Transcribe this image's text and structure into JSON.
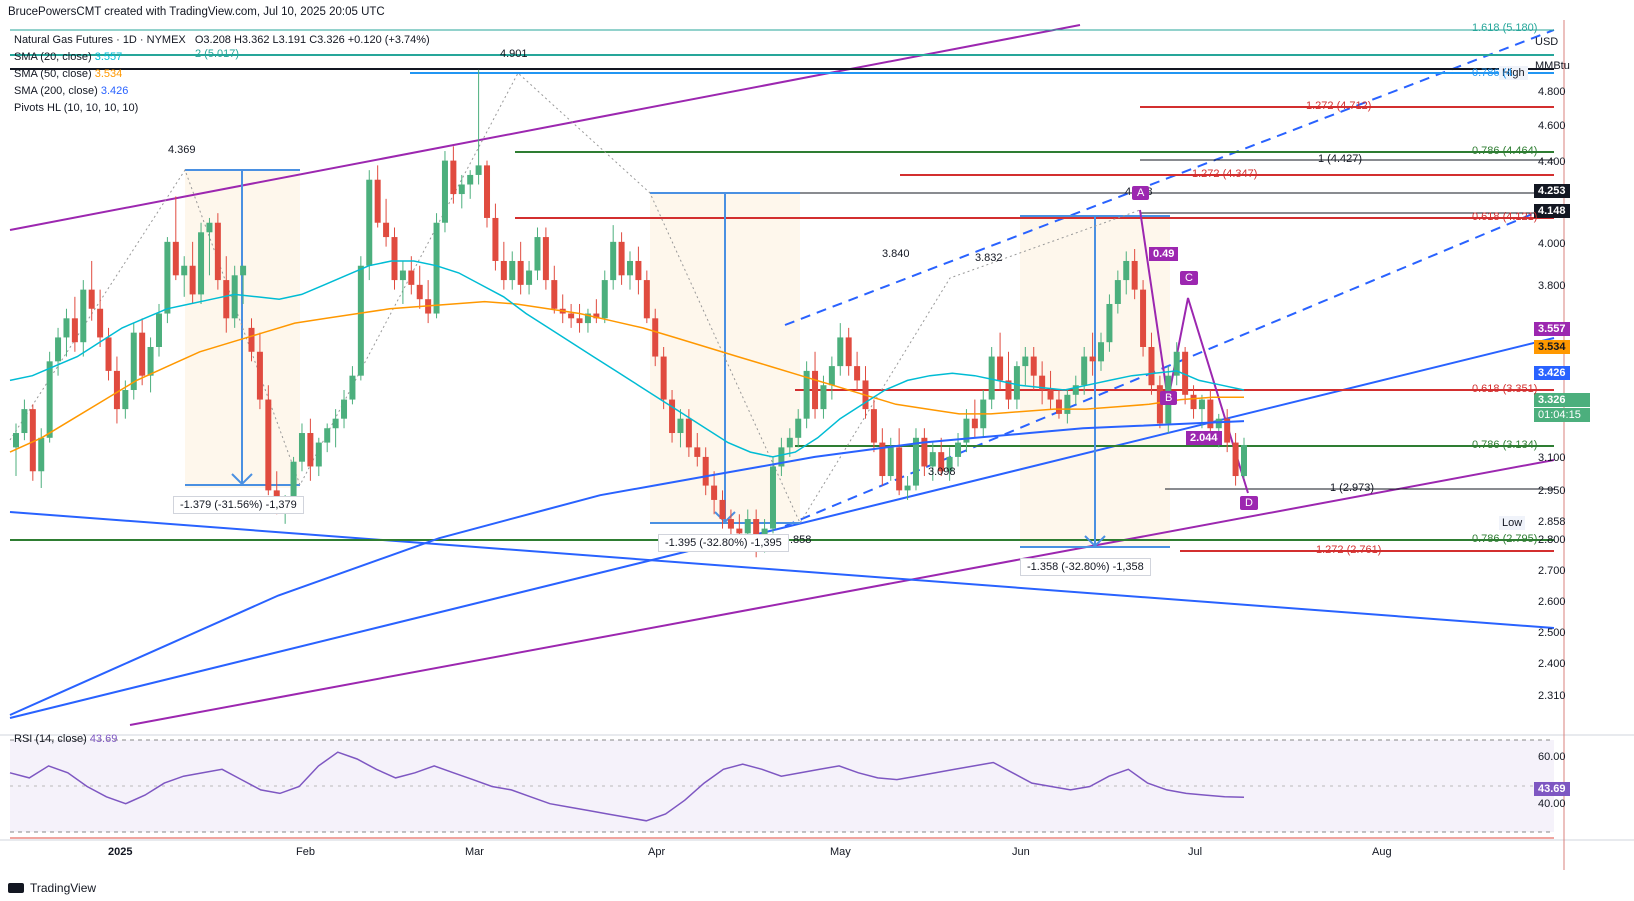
{
  "header": {
    "author_line": "BrucePowersCMT created with TradingView.com, Jul 10, 2025 20:05 UTC",
    "symbol_line": "Natural Gas Futures · 1D · NYMEX",
    "ohlc": "O3.208  H3.362  L3.191  C3.326  +0.120 (+3.74%)",
    "indicators": [
      {
        "label": "SMA (20, close)",
        "value": "3.557",
        "color": "#00bcd4"
      },
      {
        "label": "SMA (50, close)",
        "value": "3.534",
        "color": "#ff9800"
      },
      {
        "label": "SMA (200, close)",
        "value": "3.426",
        "color": "#2962ff"
      },
      {
        "label": "Pivots HL (10, 10, 10, 10)",
        "value": "",
        "color": "#131722"
      }
    ]
  },
  "price_axis": {
    "currency": "USD",
    "unit": "MMBtu",
    "ticks": [
      "4.800",
      "4.600",
      "4.400",
      "4.000",
      "3.800",
      "3.100",
      "2.950",
      "2.800",
      "2.700",
      "2.600",
      "2.500",
      "2.400",
      "2.310"
    ],
    "badges": [
      {
        "text": "4.253",
        "bg": "#131722",
        "fg": "#ffffff"
      },
      {
        "text": "4.148",
        "bg": "#131722",
        "fg": "#ffffff"
      },
      {
        "text": "3.557",
        "bg": "#9c27b0",
        "fg": "#ffffff"
      },
      {
        "text": "3.534",
        "bg": "#ff9800",
        "fg": "#131722"
      },
      {
        "text": "3.426",
        "bg": "#2962ff",
        "fg": "#ffffff"
      },
      {
        "text": "3.326",
        "bg": "#4caf7d",
        "fg": "#ffffff"
      },
      {
        "text": "01:04:15",
        "bg": "#4caf7d",
        "fg": "#ffffff"
      }
    ],
    "high_label": "High",
    "low_label": "Low",
    "low_value": "2.858"
  },
  "rsi": {
    "label": "RSI (14, close)",
    "value": "43.69",
    "ticks": [
      "60.00",
      "40.00"
    ],
    "badge": "43.69"
  },
  "time_axis": {
    "labels": [
      "2025",
      "Feb",
      "Mar",
      "Apr",
      "May",
      "Jun",
      "Jul",
      "Aug"
    ]
  },
  "annotations": {
    "pivots": [
      "4.369",
      "4.901",
      "3.840",
      "3.832",
      "3.098",
      "4.148",
      ".858"
    ],
    "measures": [
      "-1.379 (-31.56%) -1,379",
      "-1.395 (-32.80%) -1,395",
      "-1.358 (-32.80%) -1,358"
    ],
    "fib_labels": [
      "1.618 (5.180)",
      "2 (5.017)",
      "0.786 (4.",
      "1.272 (4.712)",
      "0.786 (4.464)",
      "1 (4.427)",
      "1.272 (4.347)",
      "0.618 (4.121)",
      "0.618 (3.351)",
      "0.786 (3.134)",
      "1 (2.973)",
      "0.786 (2.795)",
      "1.272 (2.761)"
    ],
    "harmonic_points": [
      "A",
      "B",
      "C",
      "D"
    ],
    "harmonic_ratios": [
      "0.49",
      "2.044"
    ]
  },
  "chart_data": {
    "type": "candlestick",
    "title": "Natural Gas Futures · 1D · NYMEX",
    "ylim": [
      2.2,
      5.1
    ],
    "candles": [
      [
        3.32,
        3.42,
        3.2,
        3.38
      ],
      [
        3.38,
        3.52,
        3.35,
        3.48
      ],
      [
        3.48,
        3.5,
        3.18,
        3.22
      ],
      [
        3.22,
        3.4,
        3.15,
        3.36
      ],
      [
        3.36,
        3.72,
        3.34,
        3.68
      ],
      [
        3.68,
        3.82,
        3.62,
        3.78
      ],
      [
        3.78,
        3.9,
        3.7,
        3.86
      ],
      [
        3.86,
        3.95,
        3.72,
        3.76
      ],
      [
        3.76,
        4.02,
        3.7,
        3.98
      ],
      [
        3.98,
        4.1,
        3.85,
        3.9
      ],
      [
        3.9,
        3.98,
        3.74,
        3.78
      ],
      [
        3.78,
        3.82,
        3.6,
        3.64
      ],
      [
        3.64,
        3.7,
        3.42,
        3.48
      ],
      [
        3.48,
        3.6,
        3.44,
        3.56
      ],
      [
        3.56,
        3.84,
        3.52,
        3.8
      ],
      [
        3.8,
        3.86,
        3.58,
        3.62
      ],
      [
        3.62,
        3.78,
        3.55,
        3.74
      ],
      [
        3.74,
        3.92,
        3.7,
        3.88
      ],
      [
        3.88,
        4.2,
        3.84,
        4.18
      ],
      [
        4.18,
        4.37,
        4.02,
        4.04
      ],
      [
        4.04,
        4.12,
        3.95,
        4.08
      ],
      [
        4.08,
        4.18,
        3.92,
        3.96
      ],
      [
        3.96,
        4.26,
        3.92,
        4.22
      ],
      [
        4.22,
        4.28,
        4.04,
        4.26
      ],
      [
        4.26,
        4.3,
        3.98,
        4.02
      ],
      [
        4.02,
        4.12,
        3.8,
        3.86
      ],
      [
        3.86,
        4.08,
        3.82,
        4.04
      ],
      [
        4.04,
        4.08,
        3.92,
        4.08
      ],
      [
        3.82,
        3.86,
        3.68,
        3.72
      ],
      [
        3.72,
        3.8,
        3.48,
        3.52
      ],
      [
        3.52,
        3.58,
        3.12,
        3.14
      ],
      [
        3.14,
        3.22,
        3.04,
        3.06
      ],
      [
        3.06,
        3.12,
        3.0,
        3.1
      ],
      [
        3.1,
        3.28,
        3.08,
        3.26
      ],
      [
        3.26,
        3.42,
        3.22,
        3.38
      ],
      [
        3.38,
        3.44,
        3.18,
        3.24
      ],
      [
        3.24,
        3.36,
        3.2,
        3.34
      ],
      [
        3.34,
        3.42,
        3.3,
        3.4
      ],
      [
        3.4,
        3.48,
        3.32,
        3.44
      ],
      [
        3.44,
        3.56,
        3.4,
        3.52
      ],
      [
        3.52,
        3.66,
        3.5,
        3.62
      ],
      [
        3.62,
        4.12,
        3.6,
        4.08
      ],
      [
        4.08,
        4.48,
        4.02,
        4.44
      ],
      [
        4.44,
        4.5,
        4.24,
        4.26
      ],
      [
        4.26,
        4.36,
        4.16,
        4.2
      ],
      [
        4.2,
        4.24,
        3.98,
        4.02
      ],
      [
        4.02,
        4.1,
        3.92,
        4.06
      ],
      [
        4.06,
        4.12,
        3.96,
        4.0
      ],
      [
        4.0,
        4.08,
        3.9,
        3.94
      ],
      [
        3.94,
        4.02,
        3.84,
        3.88
      ],
      [
        3.88,
        4.3,
        3.86,
        4.26
      ],
      [
        4.26,
        4.56,
        4.22,
        4.52
      ],
      [
        4.52,
        4.58,
        4.34,
        4.38
      ],
      [
        4.38,
        4.46,
        4.32,
        4.42
      ],
      [
        4.42,
        4.48,
        4.36,
        4.46
      ],
      [
        4.46,
        4.9,
        4.42,
        4.5
      ],
      [
        4.5,
        4.52,
        4.24,
        4.28
      ],
      [
        4.28,
        4.34,
        4.06,
        4.1
      ],
      [
        4.1,
        4.18,
        3.98,
        4.02
      ],
      [
        4.02,
        4.14,
        3.98,
        4.1
      ],
      [
        4.1,
        4.18,
        3.96,
        4.0
      ],
      [
        4.0,
        4.1,
        3.96,
        4.06
      ],
      [
        4.06,
        4.24,
        4.02,
        4.2
      ],
      [
        4.2,
        4.24,
        3.98,
        4.02
      ],
      [
        4.02,
        4.08,
        3.88,
        3.9
      ],
      [
        3.9,
        3.96,
        3.84,
        3.88
      ],
      [
        3.88,
        3.92,
        3.82,
        3.86
      ],
      [
        3.86,
        3.92,
        3.8,
        3.84
      ],
      [
        3.84,
        3.9,
        3.8,
        3.88
      ],
      [
        3.88,
        3.94,
        3.84,
        3.86
      ],
      [
        3.86,
        4.06,
        3.84,
        4.02
      ],
      [
        4.02,
        4.25,
        3.98,
        4.18
      ],
      [
        4.18,
        4.22,
        4.0,
        4.04
      ],
      [
        4.04,
        4.14,
        3.98,
        4.1
      ],
      [
        4.1,
        4.16,
        3.96,
        4.02
      ],
      [
        4.02,
        4.06,
        3.84,
        3.86
      ],
      [
        3.86,
        3.9,
        3.66,
        3.7
      ],
      [
        3.7,
        3.74,
        3.48,
        3.52
      ],
      [
        3.52,
        3.56,
        3.34,
        3.38
      ],
      [
        3.38,
        3.48,
        3.32,
        3.44
      ],
      [
        3.44,
        3.48,
        3.28,
        3.32
      ],
      [
        3.32,
        3.38,
        3.24,
        3.28
      ],
      [
        3.28,
        3.32,
        3.12,
        3.16
      ],
      [
        3.16,
        3.22,
        3.04,
        3.1
      ],
      [
        3.1,
        3.14,
        2.98,
        3.02
      ],
      [
        3.02,
        3.06,
        2.94,
        2.98
      ],
      [
        2.98,
        3.04,
        2.9,
        2.96
      ],
      [
        2.96,
        3.06,
        2.92,
        3.02
      ],
      [
        3.02,
        3.06,
        2.86,
        2.9
      ],
      [
        2.9,
        3.02,
        2.88,
        2.98
      ],
      [
        2.98,
        3.28,
        2.96,
        3.24
      ],
      [
        3.24,
        3.36,
        3.2,
        3.32
      ],
      [
        3.32,
        3.4,
        3.28,
        3.36
      ],
      [
        3.36,
        3.48,
        3.32,
        3.44
      ],
      [
        3.44,
        3.68,
        3.4,
        3.64
      ],
      [
        3.64,
        3.72,
        3.44,
        3.48
      ],
      [
        3.48,
        3.62,
        3.44,
        3.58
      ],
      [
        3.58,
        3.7,
        3.52,
        3.66
      ],
      [
        3.66,
        3.84,
        3.62,
        3.78
      ],
      [
        3.78,
        3.82,
        3.62,
        3.66
      ],
      [
        3.66,
        3.72,
        3.56,
        3.6
      ],
      [
        3.6,
        3.66,
        3.44,
        3.48
      ],
      [
        3.48,
        3.52,
        3.3,
        3.34
      ],
      [
        3.34,
        3.4,
        3.16,
        3.2
      ],
      [
        3.2,
        3.36,
        3.18,
        3.32
      ],
      [
        3.32,
        3.4,
        3.12,
        3.14
      ],
      [
        3.14,
        3.2,
        3.1,
        3.16
      ],
      [
        3.16,
        3.4,
        3.14,
        3.36
      ],
      [
        3.36,
        3.4,
        3.2,
        3.24
      ],
      [
        3.24,
        3.34,
        3.18,
        3.3
      ],
      [
        3.3,
        3.36,
        3.2,
        3.22
      ],
      [
        3.22,
        3.32,
        3.18,
        3.28
      ],
      [
        3.28,
        3.38,
        3.24,
        3.34
      ],
      [
        3.34,
        3.48,
        3.3,
        3.44
      ],
      [
        3.44,
        3.52,
        3.36,
        3.4
      ],
      [
        3.4,
        3.56,
        3.36,
        3.52
      ],
      [
        3.52,
        3.74,
        3.48,
        3.7
      ],
      [
        3.7,
        3.8,
        3.56,
        3.6
      ],
      [
        3.6,
        3.72,
        3.48,
        3.52
      ],
      [
        3.52,
        3.68,
        3.48,
        3.66
      ],
      [
        3.66,
        3.74,
        3.58,
        3.7
      ],
      [
        3.7,
        3.74,
        3.56,
        3.62
      ],
      [
        3.62,
        3.68,
        3.5,
        3.56
      ],
      [
        3.56,
        3.64,
        3.48,
        3.52
      ],
      [
        3.52,
        3.56,
        3.44,
        3.46
      ],
      [
        3.46,
        3.56,
        3.42,
        3.54
      ],
      [
        3.54,
        3.62,
        3.5,
        3.58
      ],
      [
        3.58,
        3.74,
        3.54,
        3.7
      ],
      [
        3.7,
        3.8,
        3.62,
        3.68
      ],
      [
        3.68,
        3.8,
        3.64,
        3.76
      ],
      [
        3.76,
        3.96,
        3.72,
        3.92
      ],
      [
        3.92,
        4.06,
        3.88,
        4.02
      ],
      [
        4.02,
        4.14,
        3.96,
        4.1
      ],
      [
        4.1,
        4.15,
        3.94,
        3.98
      ],
      [
        3.98,
        4.02,
        3.7,
        3.74
      ],
      [
        3.74,
        3.8,
        3.54,
        3.58
      ],
      [
        3.58,
        3.62,
        3.4,
        3.42
      ],
      [
        3.42,
        3.66,
        3.38,
        3.62
      ],
      [
        3.62,
        3.76,
        3.58,
        3.72
      ],
      [
        3.72,
        3.74,
        3.5,
        3.54
      ],
      [
        3.54,
        3.58,
        3.44,
        3.48
      ],
      [
        3.48,
        3.54,
        3.4,
        3.52
      ],
      [
        3.52,
        3.56,
        3.36,
        3.4
      ],
      [
        3.4,
        3.46,
        3.32,
        3.44
      ],
      [
        3.44,
        3.48,
        3.3,
        3.34
      ],
      [
        3.34,
        3.38,
        3.16,
        3.2
      ],
      [
        3.2,
        3.36,
        3.19,
        3.33
      ]
    ],
    "sma20": [
      3.6,
      3.62,
      3.66,
      3.7,
      3.76,
      3.82,
      3.86,
      3.9,
      3.92,
      3.94,
      3.96,
      3.95,
      3.94,
      3.96,
      4.0,
      4.04,
      4.08,
      4.1,
      4.1,
      4.08,
      4.05,
      4.0,
      3.95,
      3.88,
      3.82,
      3.76,
      3.7,
      3.64,
      3.58,
      3.52,
      3.46,
      3.4,
      3.34,
      3.3,
      3.28,
      3.3,
      3.36,
      3.44,
      3.5,
      3.56,
      3.6,
      3.62,
      3.63,
      3.62,
      3.6,
      3.58,
      3.57,
      3.56,
      3.58,
      3.6,
      3.62,
      3.63,
      3.64,
      3.6,
      3.58,
      3.56
    ],
    "sma50": [
      3.3,
      3.36,
      3.44,
      3.52,
      3.6,
      3.66,
      3.72,
      3.76,
      3.8,
      3.84,
      3.86,
      3.88,
      3.9,
      3.91,
      3.92,
      3.93,
      3.92,
      3.9,
      3.88,
      3.85,
      3.82,
      3.78,
      3.74,
      3.7,
      3.66,
      3.62,
      3.58,
      3.54,
      3.5,
      3.48,
      3.46,
      3.46,
      3.47,
      3.48,
      3.48,
      3.49,
      3.5,
      3.52,
      3.53,
      3.53
    ],
    "sma200": [
      2.2,
      2.3,
      2.4,
      2.5,
      2.6,
      2.7,
      2.78,
      2.86,
      2.94,
      3.0,
      3.06,
      3.12,
      3.16,
      3.2,
      3.24,
      3.28,
      3.31,
      3.34,
      3.36,
      3.38,
      3.4,
      3.41,
      3.42,
      3.43
    ],
    "rsi": [
      58,
      55,
      62,
      58,
      50,
      44,
      40,
      45,
      52,
      56,
      58,
      60,
      54,
      48,
      46,
      50,
      62,
      70,
      66,
      60,
      55,
      58,
      62,
      58,
      54,
      50,
      48,
      44,
      40,
      38,
      36,
      34,
      32,
      30,
      34,
      42,
      52,
      60,
      63,
      60,
      56,
      58,
      60,
      62,
      58,
      55,
      54,
      56,
      58,
      60,
      62,
      64,
      58,
      52,
      50,
      48,
      50,
      56,
      60,
      52,
      48,
      46,
      45,
      44,
      43.69
    ],
    "rsi_ylim": [
      20,
      80
    ]
  },
  "colors": {
    "up": "#4caf7d",
    "down": "#e04b3f",
    "sma20": "#00bcd4",
    "sma50": "#ff9800",
    "sma200": "#2962ff",
    "channel": "#9c27b0",
    "trend": "#2962ff",
    "fib_red": "#d32f2f",
    "fib_green": "#2e7d32",
    "rsi_line": "#7e57c2"
  }
}
